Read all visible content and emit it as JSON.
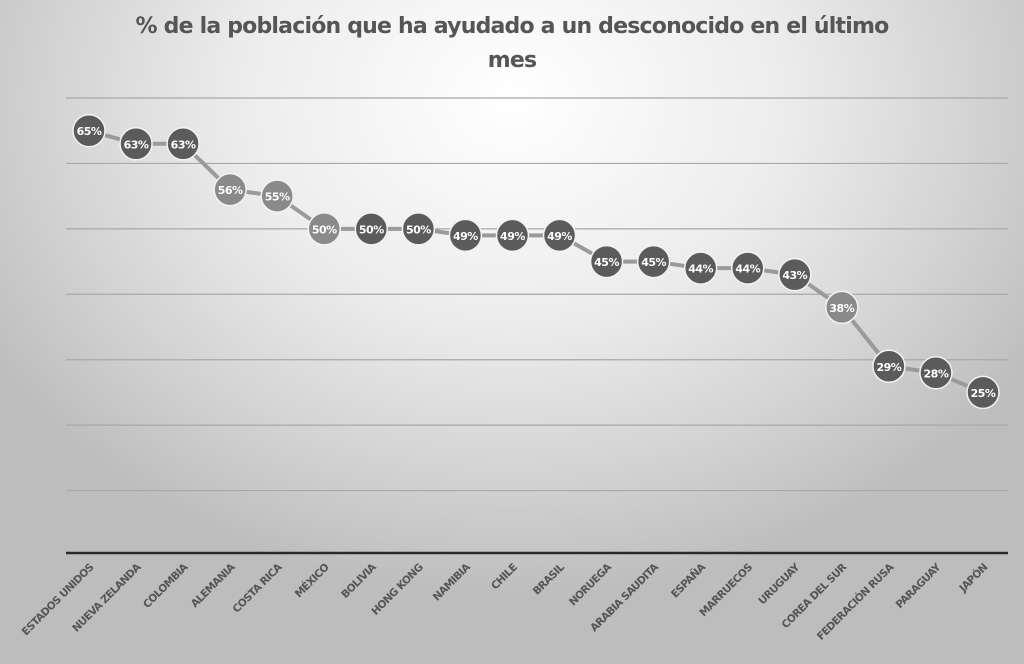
{
  "chart_data": {
    "type": "line",
    "title": "% de la población que ha ayudado a un desconocido en el último mes",
    "xlabel": "",
    "ylabel": "",
    "ylim": [
      0,
      70
    ],
    "y_grid_step": 10,
    "grid": true,
    "legend": "none",
    "categories": [
      "ESTADOS UNIDOS",
      "NUEVA ZELANDA",
      "COLOMBIA",
      "ALEMANIA",
      "COSTA RICA",
      "MÉXICO",
      "BOLIVIA",
      "HONG KONG",
      "NAMIBIA",
      "CHILE",
      "BRASIL",
      "NORUEGA",
      "ARABIA SAUDITA",
      "ESPAÑA",
      "MARRUECOS",
      "URUGUAY",
      "COREA DEL SUR",
      "FEDERACIÓN RUSA",
      "PARAGUAY",
      "JAPÓN"
    ],
    "values": [
      65,
      63,
      63,
      56,
      55,
      50,
      50,
      50,
      49,
      49,
      49,
      45,
      45,
      44,
      44,
      43,
      38,
      29,
      28,
      25
    ],
    "data_labels": [
      "65%",
      "63%",
      "63%",
      "56%",
      "55%",
      "50%",
      "50%",
      "50%",
      "49%",
      "49%",
      "49%",
      "45%",
      "45%",
      "44%",
      "44%",
      "43%",
      "38%",
      "29%",
      "28%",
      "25%"
    ],
    "colors": {
      "line": "#9a9a9a",
      "marker": "#5b5b5b",
      "marker_highlight": "#8a8a8a",
      "marker_edge": "#f2f2f2",
      "label": "#ffffff",
      "grid": "#a8a8a8",
      "axis": "#2a2a2a",
      "tick_label": "#555555"
    },
    "highlight_indices": [
      3,
      4,
      5,
      16
    ]
  }
}
